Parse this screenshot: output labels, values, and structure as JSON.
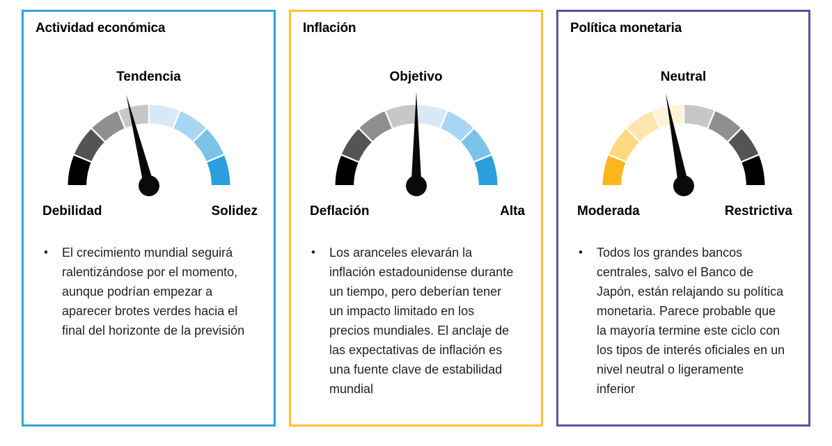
{
  "page": {
    "background": "#ffffff"
  },
  "chart_data": [
    {
      "type": "gauge",
      "title": "Actividad económica",
      "top_label": "Tendencia",
      "left_label": "Debilidad",
      "right_label": "Solidez",
      "segments": 8,
      "segment_colors": [
        "#000000",
        "#545454",
        "#8F8F8F",
        "#C7C7C7",
        "#D7E9F7",
        "#A8D5F1",
        "#7CC3EA",
        "#2B9FDB"
      ],
      "needle_angle_deg": -14,
      "needle_value_0to1": 0.42,
      "needle_color": "#0a0a0a",
      "border_color": "#2EA3DC",
      "bullet": "El crecimiento mundial seguirá ralentizándose por el momento, aunque podrían empezar a aparecer brotes verdes hacia el final del horizonte de la previsión"
    },
    {
      "type": "gauge",
      "title": "Inflación",
      "top_label": "Objetivo",
      "left_label": "Deflación",
      "right_label": "Alta",
      "segments": 8,
      "segment_colors": [
        "#000000",
        "#545454",
        "#8F8F8F",
        "#C7C7C7",
        "#D7E9F7",
        "#A8D5F1",
        "#7CC3EA",
        "#2B9FDB"
      ],
      "needle_angle_deg": 0,
      "needle_value_0to1": 0.5,
      "needle_color": "#0a0a0a",
      "border_color": "#FFC32E",
      "bullet": "Los aranceles elevarán la inflación estadounidense durante un tiempo, pero deberían tener un impacto limitado en los precios mundiales. El anclaje de las expectativas de inflación es una fuente clave de estabilidad mundial"
    },
    {
      "type": "gauge",
      "title": "Política monetaria",
      "top_label": "Neutral",
      "left_label": "Moderada",
      "right_label": "Restrictiva",
      "segments": 8,
      "segment_colors": [
        "#FCB61A",
        "#FCD87E",
        "#FDE5AC",
        "#FEF3D8",
        "#C7C7C7",
        "#8F8F8F",
        "#545454",
        "#000000"
      ],
      "needle_angle_deg": -11,
      "needle_value_0to1": 0.44,
      "needle_color": "#0a0a0a",
      "border_color": "#5C4EA0",
      "bullet": "Todos los grandes bancos centrales, salvo el Banco de Japón, están relajando su política monetaria. Parece probable que la mayoría termine este ciclo con los tipos de interés oficiales en un nivel neutral o ligeramente inferior"
    }
  ],
  "bullet_marker": "•"
}
